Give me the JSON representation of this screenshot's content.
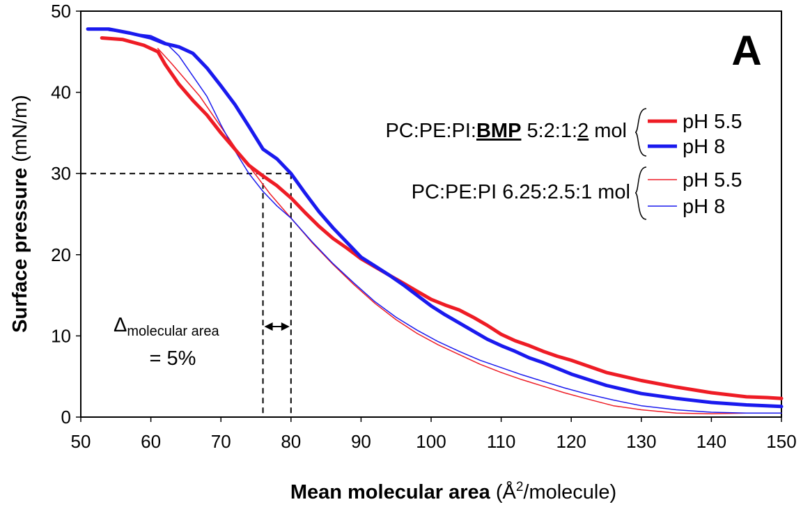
{
  "chart_data": {
    "type": "line",
    "panel_label": "A",
    "xlabel_bold": "Mean molecular area",
    "xlabel_unit_pre": "(Å",
    "xlabel_unit_sup": "2",
    "xlabel_unit_post": "/molecule)",
    "ylabel_bold": "Surface pressure",
    "ylabel_unit": "(mN/m)",
    "xlim": [
      50,
      150
    ],
    "ylim": [
      0,
      50
    ],
    "xticks": [
      50,
      60,
      70,
      80,
      90,
      100,
      110,
      120,
      130,
      140,
      150
    ],
    "yticks": [
      0,
      10,
      20,
      30,
      40,
      50
    ],
    "grid": false,
    "legend_position": "right",
    "groups": [
      {
        "label_pre": "PC:PE:PI:",
        "label_bold": "BMP",
        "label_mid": " 5:2:1:",
        "label_underline": "2",
        "label_post": " mol",
        "entries": [
          "pH 5.5",
          "pH 8"
        ]
      },
      {
        "label": "PC:PE:PI 6.25:2.5:1 mol",
        "entries": [
          "pH 5.5",
          "pH 8"
        ]
      }
    ],
    "series": [
      {
        "name": "pH 5.5",
        "color": "#ee1c25",
        "weight": "thick",
        "x": [
          53,
          56,
          59,
          61,
          62,
          64,
          66,
          68,
          70,
          72,
          74,
          76,
          78,
          80,
          82,
          84,
          86,
          88,
          90,
          92,
          94,
          96,
          98,
          100,
          102,
          104,
          106,
          108,
          110,
          112,
          114,
          116,
          118,
          120,
          125,
          130,
          135,
          140,
          145,
          148,
          150
        ],
        "y": [
          46.7,
          46.5,
          45.8,
          45,
          43.5,
          41,
          39,
          37.2,
          35,
          33,
          31,
          29.7,
          28.5,
          27,
          25.2,
          23.5,
          22,
          20.8,
          19.5,
          18.5,
          17.5,
          16.5,
          15.5,
          14.5,
          13.8,
          13.2,
          12.3,
          11.3,
          10.2,
          9.4,
          8.8,
          8.1,
          7.5,
          7,
          5.5,
          4.5,
          3.7,
          3,
          2.5,
          2.4,
          2.3
        ]
      },
      {
        "name": "pH 8",
        "color": "#1a1aee",
        "weight": "thick",
        "x": [
          51,
          54,
          57,
          60,
          62,
          64,
          66,
          68,
          70,
          72,
          74,
          76,
          78,
          80,
          82,
          84,
          86,
          88,
          90,
          92,
          94,
          96,
          98,
          100,
          102,
          104,
          106,
          108,
          110,
          112,
          114,
          116,
          118,
          120,
          125,
          130,
          135,
          140,
          145,
          150
        ],
        "y": [
          47.8,
          47.8,
          47.3,
          46.7,
          46,
          45.6,
          44.8,
          43,
          40.8,
          38.5,
          35.8,
          33,
          31.8,
          30,
          27.6,
          25.3,
          23.3,
          21.5,
          19.7,
          18.6,
          17.5,
          16.3,
          15,
          13.7,
          12.6,
          11.6,
          10.6,
          9.6,
          8.8,
          8.1,
          7.3,
          6.7,
          6,
          5.3,
          3.9,
          2.9,
          2.3,
          1.8,
          1.5,
          1.3
        ]
      },
      {
        "name": "pH 5.5",
        "color": "#ee1c25",
        "weight": "thin",
        "x": [
          61,
          63,
          65,
          67,
          69,
          71,
          73,
          75,
          77,
          80,
          83,
          86,
          89,
          92,
          95,
          98,
          101,
          104,
          107,
          110,
          113,
          116,
          119,
          122,
          126,
          130,
          135,
          140,
          145,
          148,
          150
        ],
        "y": [
          45.4,
          43.5,
          41.5,
          39.5,
          37,
          34.5,
          32,
          29.8,
          27.5,
          24.5,
          21.5,
          18.8,
          16.3,
          14,
          12,
          10.3,
          8.9,
          7.7,
          6.5,
          5.5,
          4.6,
          3.8,
          3,
          2.3,
          1.4,
          0.9,
          0.5,
          0.4,
          0.5,
          0.5,
          0.5
        ]
      },
      {
        "name": "pH 8",
        "color": "#1a1aee",
        "weight": "thin",
        "x": [
          54,
          57,
          60,
          62,
          64,
          66,
          68,
          70,
          72,
          74,
          76,
          78,
          80,
          83,
          86,
          89,
          92,
          95,
          98,
          101,
          104,
          107,
          110,
          113,
          116,
          119,
          122,
          126,
          130,
          135,
          140,
          145,
          150
        ],
        "y": [
          47.6,
          47.3,
          47,
          46.2,
          44.5,
          42,
          39.5,
          36,
          32.8,
          30,
          27.8,
          26,
          24.5,
          21.6,
          18.9,
          16.5,
          14.2,
          12.3,
          10.7,
          9.3,
          8.1,
          7,
          6.1,
          5.2,
          4.4,
          3.6,
          2.9,
          2.1,
          1.4,
          0.9,
          0.6,
          0.5,
          0.5
        ]
      }
    ],
    "annotation": {
      "delta_symbol": "Δ",
      "delta_subscript": "molecular area",
      "delta_value": "= 5%",
      "reference_y": 30,
      "x_from": 76,
      "x_to": 80
    }
  }
}
